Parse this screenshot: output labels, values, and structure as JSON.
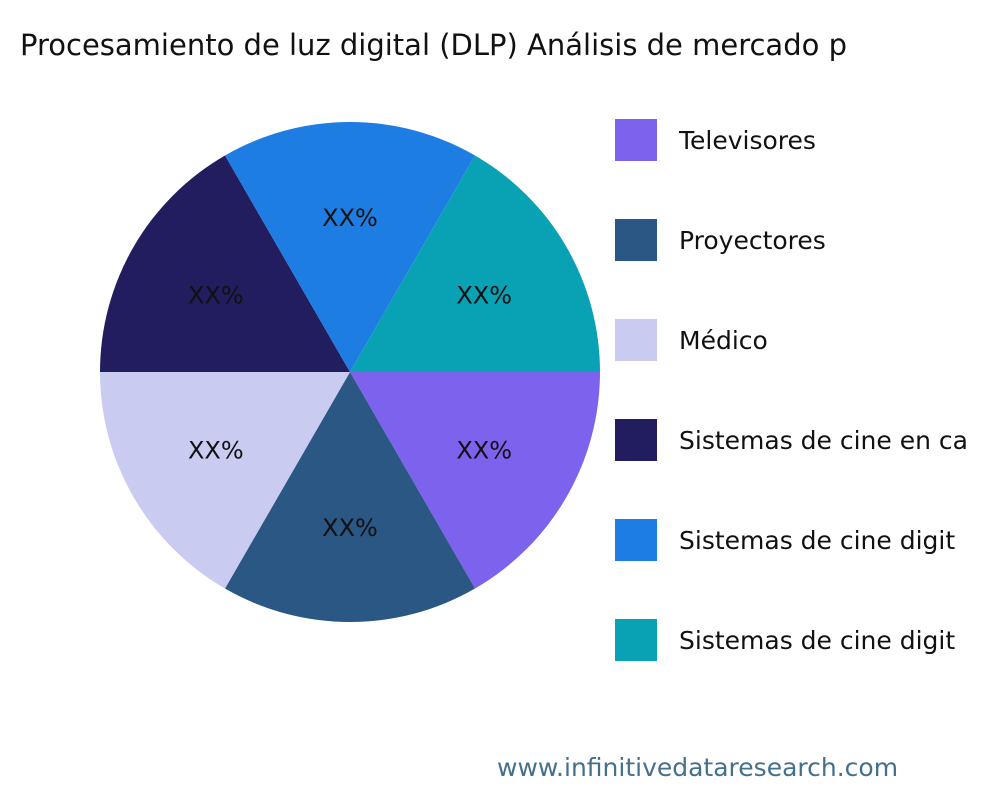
{
  "title": "Procesamiento de luz digital (DLP) Análisis de mercado p",
  "footer": {
    "url": "www.infinitivedataresearch.com"
  },
  "chart_data": {
    "type": "pie",
    "title": "Procesamiento de luz digital (DLP) Análisis de mercado p",
    "start_angle": "east",
    "direction": "clockwise",
    "legend_position": "right",
    "note": "All slices equal sixths, values masked as XX% in the image",
    "slices": [
      {
        "label": "Televisores",
        "value_pct": 16.67,
        "data_label": "XX%",
        "color": "#7c62ec"
      },
      {
        "label": "Proyectores",
        "value_pct": 16.67,
        "data_label": "XX%",
        "color": "#2a5783"
      },
      {
        "label": "Médico",
        "value_pct": 16.67,
        "data_label": "XX%",
        "color": "#c9cbf0"
      },
      {
        "label": "Sistemas de cine en ca",
        "value_pct": 16.67,
        "data_label": "XX%",
        "color": "#211d5e"
      },
      {
        "label": "Sistemas de cine digit",
        "value_pct": 16.67,
        "data_label": "XX%",
        "color": "#1d7de3"
      },
      {
        "label": "Sistemas de cine digit",
        "value_pct": 16.67,
        "data_label": "XX%",
        "color": "#09a2b4"
      }
    ]
  }
}
